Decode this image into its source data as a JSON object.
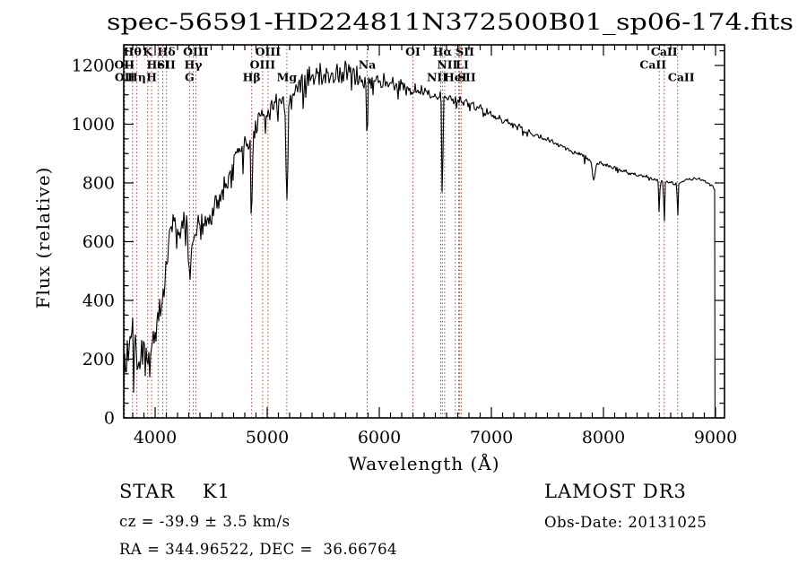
{
  "chart_data": {
    "type": "line",
    "title": "spec-56591-HD224811N372500B01_sp06-174.fits",
    "xlabel": "Wavelength (Å)",
    "ylabel": "Flux (relative)",
    "xlim": [
      3720,
      9080
    ],
    "ylim": [
      0,
      1270
    ],
    "xticks": [
      4000,
      5000,
      6000,
      7000,
      8000,
      9000
    ],
    "yticks": [
      0,
      200,
      400,
      600,
      800,
      1000,
      1200
    ],
    "x_minor_step": 100,
    "y_minor_step": 50,
    "grid": false,
    "legend": "none",
    "curve_color": "#000000",
    "marker_line_color": "#b2443a",
    "spectral_lines": [
      {
        "label": "Hθ",
        "wl": 3798,
        "row": 1
      },
      {
        "label": "K",
        "wl": 3933,
        "row": 1
      },
      {
        "label": "Hδ",
        "wl": 4101,
        "row": 1
      },
      {
        "label": "OIII",
        "wl": 4363,
        "row": 1
      },
      {
        "label": "OIII",
        "wl": 5007,
        "row": 1
      },
      {
        "label": "OI",
        "wl": 6300,
        "row": 1
      },
      {
        "label": "Hα",
        "wl": 6563,
        "row": 1
      },
      {
        "label": "SII",
        "wl": 6717,
        "row": 1,
        "dx": 6
      },
      {
        "label": "CaII",
        "wl": 8542,
        "row": 1
      },
      {
        "label": "OII",
        "wl": 3726,
        "row": 2
      },
      {
        "label": "HeI",
        "wl": 4026,
        "row": 2
      },
      {
        "label": "SII",
        "wl": 4068,
        "row": 2,
        "dx": 4
      },
      {
        "label": "Hγ",
        "wl": 4340,
        "row": 2
      },
      {
        "label": "OIII",
        "wl": 4959,
        "row": 2
      },
      {
        "label": "Na",
        "wl": 5892,
        "row": 2
      },
      {
        "label": "NII",
        "wl": 6583,
        "row": 2,
        "dx": 3
      },
      {
        "label": "LI",
        "wl": 6708,
        "row": 2,
        "dx": 4
      },
      {
        "label": "CaII",
        "wl": 8498,
        "row": 2,
        "dx": -7
      },
      {
        "label": "OII",
        "wl": 3729,
        "row": 3
      },
      {
        "label": "Hη",
        "wl": 3835,
        "row": 3
      },
      {
        "label": "H",
        "wl": 3968,
        "row": 3
      },
      {
        "label": "G",
        "wl": 4307,
        "row": 3
      },
      {
        "label": "Hβ",
        "wl": 4861,
        "row": 3
      },
      {
        "label": "Mg",
        "wl": 5175,
        "row": 3
      },
      {
        "label": "NII",
        "wl": 6548,
        "row": 3,
        "dx": -4
      },
      {
        "label": "HeI",
        "wl": 6678,
        "row": 3
      },
      {
        "label": "SII",
        "wl": 6731,
        "row": 3,
        "dx": 6
      },
      {
        "label": "CaII",
        "wl": 8662,
        "row": 3,
        "dx": 4
      }
    ],
    "continuum": [
      [
        3716,
        20
      ],
      [
        3722,
        120
      ],
      [
        3730,
        160
      ],
      [
        3745,
        230
      ],
      [
        3760,
        200
      ],
      [
        3775,
        260
      ],
      [
        3790,
        360
      ],
      [
        3800,
        280
      ],
      [
        3815,
        220
      ],
      [
        3830,
        200
      ],
      [
        3845,
        170
      ],
      [
        3860,
        150
      ],
      [
        3875,
        220
      ],
      [
        3890,
        260
      ],
      [
        3905,
        230
      ],
      [
        3920,
        200
      ],
      [
        3935,
        210
      ],
      [
        3950,
        240
      ],
      [
        3965,
        230
      ],
      [
        3980,
        260
      ],
      [
        4000,
        300
      ],
      [
        4020,
        340
      ],
      [
        4040,
        380
      ],
      [
        4060,
        360
      ],
      [
        4080,
        420
      ],
      [
        4100,
        520
      ],
      [
        4115,
        600
      ],
      [
        4130,
        620
      ],
      [
        4150,
        645
      ],
      [
        4170,
        660
      ],
      [
        4190,
        655
      ],
      [
        4210,
        640
      ],
      [
        4230,
        650
      ],
      [
        4250,
        660
      ],
      [
        4270,
        645
      ],
      [
        4290,
        620
      ],
      [
        4310,
        560
      ],
      [
        4330,
        600
      ],
      [
        4350,
        630
      ],
      [
        4370,
        640
      ],
      [
        4400,
        650
      ],
      [
        4430,
        665
      ],
      [
        4460,
        680
      ],
      [
        4500,
        700
      ],
      [
        4540,
        720
      ],
      [
        4580,
        755
      ],
      [
        4620,
        790
      ],
      [
        4660,
        830
      ],
      [
        4700,
        870
      ],
      [
        4740,
        900
      ],
      [
        4780,
        925
      ],
      [
        4820,
        945
      ],
      [
        4860,
        950
      ],
      [
        4900,
        1000
      ],
      [
        4940,
        1015
      ],
      [
        4980,
        1040
      ],
      [
        5020,
        1050
      ],
      [
        5060,
        1065
      ],
      [
        5100,
        1080
      ],
      [
        5140,
        1070
      ],
      [
        5180,
        1070
      ],
      [
        5220,
        1095
      ],
      [
        5260,
        1115
      ],
      [
        5300,
        1130
      ],
      [
        5340,
        1145
      ],
      [
        5380,
        1155
      ],
      [
        5420,
        1165
      ],
      [
        5460,
        1170
      ],
      [
        5500,
        1175
      ],
      [
        5540,
        1180
      ],
      [
        5580,
        1172
      ],
      [
        5620,
        1175
      ],
      [
        5660,
        1178
      ],
      [
        5700,
        1180
      ],
      [
        5740,
        1172
      ],
      [
        5780,
        1168
      ],
      [
        5820,
        1162
      ],
      [
        5860,
        1158
      ],
      [
        5900,
        1150
      ],
      [
        5950,
        1152
      ],
      [
        6000,
        1148
      ],
      [
        6060,
        1142
      ],
      [
        6120,
        1136
      ],
      [
        6180,
        1130
      ],
      [
        6240,
        1124
      ],
      [
        6300,
        1118
      ],
      [
        6360,
        1112
      ],
      [
        6420,
        1106
      ],
      [
        6480,
        1100
      ],
      [
        6540,
        1094
      ],
      [
        6600,
        1090
      ],
      [
        6660,
        1086
      ],
      [
        6720,
        1082
      ],
      [
        6780,
        1075
      ],
      [
        6840,
        1065
      ],
      [
        6900,
        1052
      ],
      [
        6960,
        1040
      ],
      [
        7020,
        1028
      ],
      [
        7080,
        1016
      ],
      [
        7140,
        1006
      ],
      [
        7200,
        996
      ],
      [
        7260,
        986
      ],
      [
        7320,
        976
      ],
      [
        7380,
        966
      ],
      [
        7440,
        956
      ],
      [
        7500,
        946
      ],
      [
        7560,
        936
      ],
      [
        7620,
        926
      ],
      [
        7680,
        916
      ],
      [
        7740,
        906
      ],
      [
        7800,
        896
      ],
      [
        7860,
        886
      ],
      [
        7920,
        872
      ],
      [
        7980,
        866
      ],
      [
        8040,
        858
      ],
      [
        8100,
        850
      ],
      [
        8160,
        842
      ],
      [
        8220,
        836
      ],
      [
        8280,
        830
      ],
      [
        8340,
        824
      ],
      [
        8400,
        818
      ],
      [
        8460,
        812
      ],
      [
        8520,
        806
      ],
      [
        8580,
        800
      ],
      [
        8640,
        798
      ],
      [
        8700,
        805
      ],
      [
        8760,
        812
      ],
      [
        8820,
        815
      ],
      [
        8880,
        810
      ],
      [
        8930,
        800
      ],
      [
        8970,
        790
      ],
      [
        8990,
        778
      ]
    ],
    "noise_amp": [
      [
        3716,
        70
      ],
      [
        3800,
        85
      ],
      [
        3900,
        75
      ],
      [
        4000,
        65
      ],
      [
        4100,
        60
      ],
      [
        4200,
        50
      ],
      [
        4300,
        52
      ],
      [
        4400,
        48
      ],
      [
        4500,
        45
      ],
      [
        4600,
        45
      ],
      [
        4700,
        45
      ],
      [
        4800,
        42
      ],
      [
        4900,
        42
      ],
      [
        5000,
        42
      ],
      [
        5100,
        40
      ],
      [
        5200,
        42
      ],
      [
        5300,
        46
      ],
      [
        5400,
        48
      ],
      [
        5500,
        46
      ],
      [
        5600,
        42
      ],
      [
        5700,
        36
      ],
      [
        5800,
        33
      ],
      [
        5900,
        32
      ],
      [
        6000,
        30
      ],
      [
        6100,
        28
      ],
      [
        6200,
        27
      ],
      [
        6300,
        26
      ],
      [
        6400,
        24
      ],
      [
        6500,
        22
      ],
      [
        6600,
        22
      ],
      [
        6700,
        20
      ],
      [
        6800,
        18
      ],
      [
        6900,
        16
      ],
      [
        7000,
        15
      ],
      [
        7100,
        14
      ],
      [
        7200,
        13
      ],
      [
        7300,
        12
      ],
      [
        7400,
        12
      ],
      [
        7500,
        11
      ],
      [
        7600,
        11
      ],
      [
        7700,
        10
      ],
      [
        7800,
        10
      ],
      [
        7900,
        10
      ],
      [
        8000,
        9
      ],
      [
        8100,
        9
      ],
      [
        8200,
        8
      ],
      [
        8300,
        8
      ],
      [
        8400,
        8
      ],
      [
        8500,
        7
      ],
      [
        8600,
        7
      ],
      [
        8700,
        6
      ],
      [
        8800,
        6
      ],
      [
        8900,
        6
      ],
      [
        8990,
        6
      ]
    ],
    "absorption_dips": [
      {
        "wl": 4307,
        "depth": 80,
        "sigma": 9
      },
      {
        "wl": 4861,
        "depth": 200,
        "sigma": 7
      },
      {
        "wl": 5175,
        "depth": 330,
        "sigma": 8
      },
      {
        "wl": 5892,
        "depth": 230,
        "sigma": 5
      },
      {
        "wl": 6563,
        "depth": 390,
        "sigma": 4.5
      },
      {
        "wl": 7915,
        "depth": 70,
        "sigma": 12
      },
      {
        "wl": 8498,
        "depth": 120,
        "sigma": 4
      },
      {
        "wl": 8542,
        "depth": 155,
        "sigma": 4
      },
      {
        "wl": 8662,
        "depth": 125,
        "sigma": 4
      }
    ],
    "cutoff_wl": 8992,
    "noise_seed": 20131025
  },
  "footer": {
    "class_line": "STAR    K1",
    "cz_line": "cz = -39.9 ± 3.5 km/s",
    "radec_line": "RA = 344.96522, DEC =  36.66764",
    "survey": "LAMOST DR3",
    "obsdate": "Obs-Date: 20131025"
  }
}
